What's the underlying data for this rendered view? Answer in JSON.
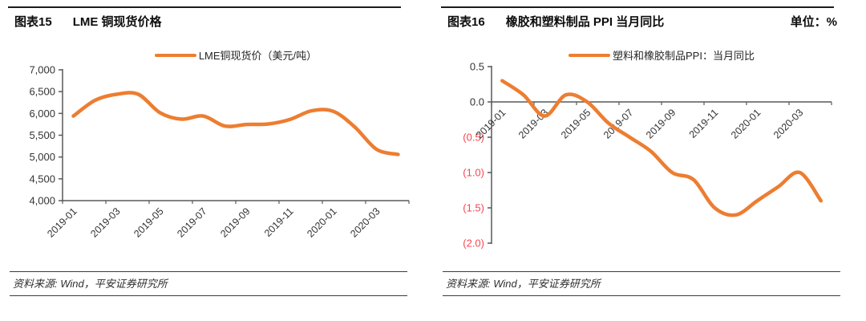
{
  "colors": {
    "accent_orange": "#ED7D31",
    "negative_red": "#fa4650",
    "axis_gray": "#595959",
    "title_black": "#0d0d0d"
  },
  "chart_data": [
    {
      "type": "line",
      "fig_label": "图表15",
      "title": "LME 铜现货价格",
      "unit": "",
      "source": "资料来源: Wind，平安证券研究所",
      "legend_position": "top",
      "grid": false,
      "x": [
        "2019-01",
        "2019-02",
        "2019-03",
        "2019-04",
        "2019-05",
        "2019-06",
        "2019-07",
        "2019-08",
        "2019-09",
        "2019-10",
        "2019-11",
        "2019-12",
        "2020-01",
        "2020-02",
        "2020-03",
        "2020-04"
      ],
      "x_tick_labels": [
        "2019-01",
        "2019-03",
        "2019-05",
        "2019-07",
        "2019-09",
        "2019-11",
        "2020-01",
        "2020-03"
      ],
      "x_tick_every": 2,
      "ylim": [
        4000,
        7000
      ],
      "y_ticks": [
        {
          "v": 7000,
          "label": "7,000",
          "negative": false
        },
        {
          "v": 6500,
          "label": "6,500",
          "negative": false
        },
        {
          "v": 6000,
          "label": "6,000",
          "negative": false
        },
        {
          "v": 5500,
          "label": "5,500",
          "negative": false
        },
        {
          "v": 5000,
          "label": "5,000",
          "negative": false
        },
        {
          "v": 4500,
          "label": "4,500",
          "negative": false
        },
        {
          "v": 4000,
          "label": "4,000",
          "negative": false
        }
      ],
      "series": [
        {
          "name": "LME铜现货价（美元/吨）",
          "color": "#ED7D31",
          "values": [
            5939,
            6300,
            6439,
            6438,
            6017,
            5868,
            5940,
            5710,
            5746,
            5757,
            5860,
            6059,
            6049,
            5688,
            5178,
            5058
          ]
        }
      ]
    },
    {
      "type": "line",
      "fig_label": "图表16",
      "title": "橡胶和塑料制品 PPI 当月同比",
      "unit": "单位：%",
      "source": "资料来源: Wind，平安证券研究所",
      "legend_position": "top",
      "grid": false,
      "axis_cross_at": 0,
      "x": [
        "2019-01",
        "2019-02",
        "2019-03",
        "2019-04",
        "2019-05",
        "2019-06",
        "2019-07",
        "2019-08",
        "2019-09",
        "2019-10",
        "2019-11",
        "2019-12",
        "2020-01",
        "2020-02",
        "2020-03",
        "2020-04"
      ],
      "x_tick_labels": [
        "2019-01",
        "2019-03",
        "2019-05",
        "2019-07",
        "2019-09",
        "2019-11",
        "2020-01",
        "2020-03"
      ],
      "x_tick_every": 2,
      "ylim": [
        -2.0,
        0.5
      ],
      "y_ticks": [
        {
          "v": 0.5,
          "label": "0.5",
          "negative": false
        },
        {
          "v": 0.0,
          "label": "0.0",
          "negative": false
        },
        {
          "v": -0.5,
          "label": "(0.5)",
          "negative": true
        },
        {
          "v": -1.0,
          "label": "(1.0)",
          "negative": true
        },
        {
          "v": -1.5,
          "label": "(1.5)",
          "negative": true
        },
        {
          "v": -2.0,
          "label": "(2.0)",
          "negative": true
        }
      ],
      "series": [
        {
          "name": "塑料和橡胶制品PPI：当月同比",
          "color": "#ED7D31",
          "values": [
            0.3,
            0.1,
            -0.2,
            0.1,
            0.0,
            -0.3,
            -0.5,
            -0.7,
            -1.0,
            -1.1,
            -1.5,
            -1.6,
            -1.4,
            -1.2,
            -1.0,
            -1.4
          ]
        }
      ]
    }
  ]
}
